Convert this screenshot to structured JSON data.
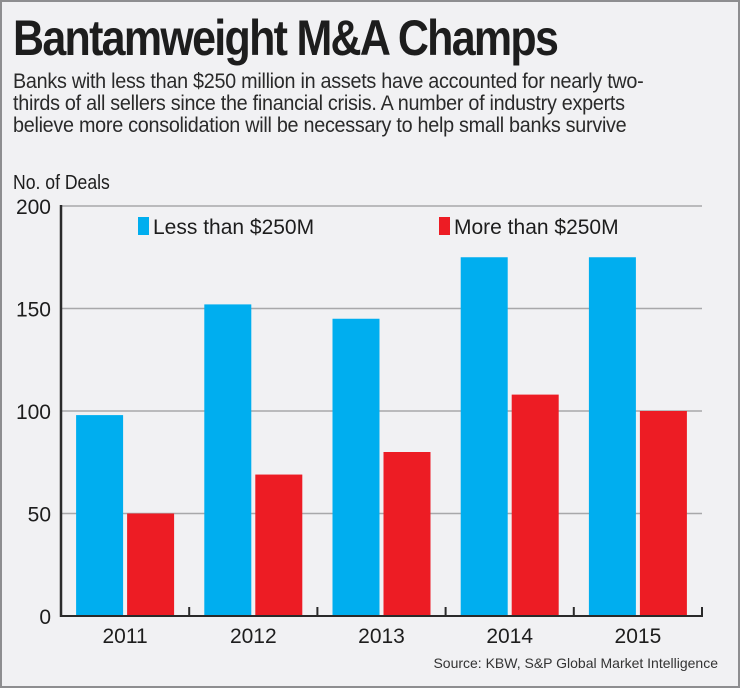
{
  "header": {
    "title": "Bantamweight M&A Champs",
    "subtitle": "Banks with less than $250 million in assets have accounted for nearly two-thirds of all sellers since the financial crisis. A number of industry experts believe more consolidation will be necessary to help small banks survive"
  },
  "source": "Source: KBW, S&P Global Market Intelligence",
  "colors": {
    "background": "#f1f1f3",
    "less_than_250m": "#00aeef",
    "more_than_250m": "#ed1c24",
    "gridline": "#a8a8aa",
    "axis": "#2a2a2a"
  },
  "chart_data": {
    "type": "bar",
    "title": "Bantamweight M&A Champs",
    "xlabel": "",
    "ylabel": "No. of Deals",
    "categories": [
      "2011",
      "2012",
      "2013",
      "2014",
      "2015"
    ],
    "series": [
      {
        "name": "Less than $250M",
        "color": "#00aeef",
        "values": [
          98,
          152,
          145,
          175,
          175
        ]
      },
      {
        "name": "More than $250M",
        "color": "#ed1c24",
        "values": [
          50,
          69,
          80,
          108,
          100
        ]
      }
    ],
    "ylim": [
      0,
      200
    ],
    "yticks": [
      0,
      50,
      100,
      150,
      200
    ],
    "grid": true,
    "legend": "top"
  }
}
